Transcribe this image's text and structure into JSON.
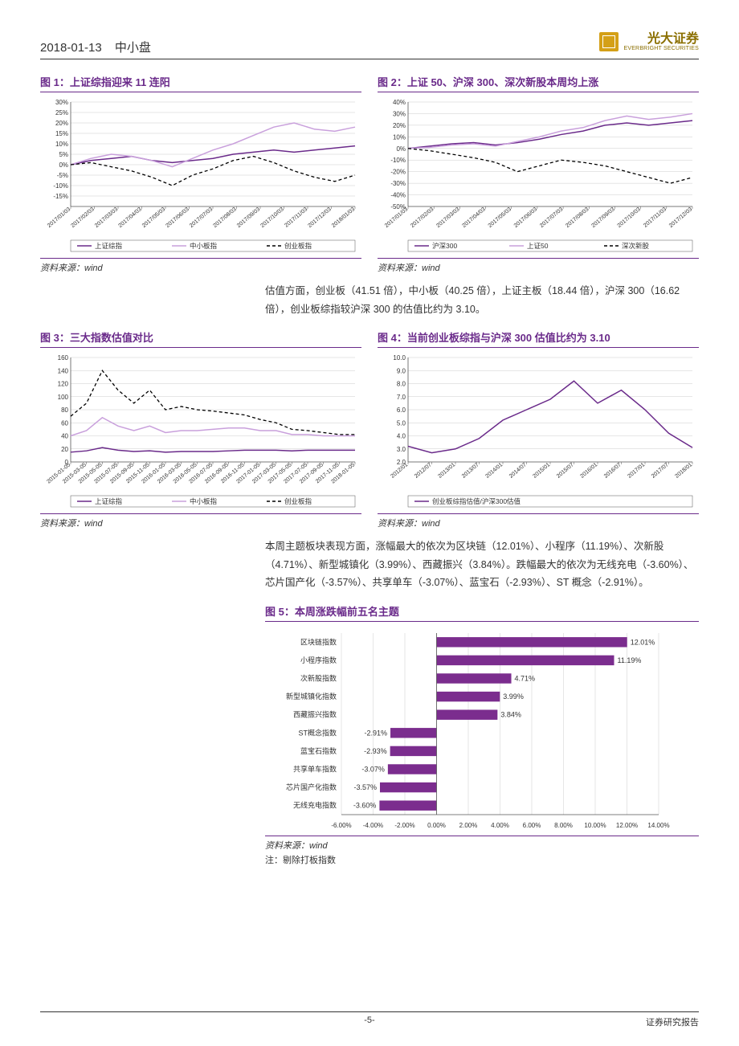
{
  "header": {
    "date": "2018-01-13",
    "section": "中小盘",
    "company": "光大证券",
    "company_en": "EVERBRIGHT SECURITIES",
    "logo_color": "#d4a017"
  },
  "footer": {
    "page": "-5-",
    "right": "证券研究报告"
  },
  "para1": "估值方面，创业板（41.51 倍），中小板（40.25 倍），上证主板（18.44 倍），沪深 300（16.62 倍），创业板综指较沪深 300 的估值比约为 3.10。",
  "para2": "本周主题板块表现方面，涨幅最大的依次为区块链（12.01%）、小程序（11.19%）、次新股（4.71%）、新型城镇化（3.99%）、西藏振兴（3.84%）。跌幅最大的依次为无线充电（-3.60%）、芯片国产化（-3.57%）、共享单车（-3.07%）、蓝宝石（-2.93%）、ST 概念（-2.91%）。",
  "source": "资料来源：wind",
  "fig5_note": "注：剔除打板指数",
  "colors": {
    "purple_dark": "#6a2a8a",
    "purple_mid": "#a56fc1",
    "purple_light": "#c9a0dc",
    "black": "#000000",
    "grid": "#cccccc",
    "axis": "#555555",
    "text": "#333333"
  },
  "fig1": {
    "label": "图 1：",
    "title": "上证综指迎来 11 连阳",
    "type": "line",
    "ylim": [
      -20,
      30
    ],
    "yticks": [
      -15,
      -10,
      -5,
      0,
      5,
      10,
      15,
      20,
      25,
      30
    ],
    "xlabels": [
      "2017/01/03",
      "2017/02/03",
      "2017/03/03",
      "2017/04/03",
      "2017/05/03",
      "2017/06/03",
      "2017/07/03",
      "2017/08/03",
      "2017/09/03",
      "2017/10/03",
      "2017/11/03",
      "2017/12/03",
      "2018/01/03"
    ],
    "series": [
      {
        "name": "上证综指",
        "color": "#6a2a8a",
        "dash": "",
        "width": 1.5,
        "data": [
          0,
          2,
          3,
          4,
          2,
          1,
          2,
          3,
          5,
          6,
          7,
          6,
          7,
          8,
          9
        ]
      },
      {
        "name": "中小板指",
        "color": "#c9a0dc",
        "dash": "",
        "width": 1.5,
        "data": [
          0,
          3,
          5,
          4,
          2,
          -1,
          3,
          7,
          10,
          14,
          18,
          20,
          17,
          16,
          18
        ]
      },
      {
        "name": "创业板指",
        "color": "#000000",
        "dash": "4 3",
        "width": 1.3,
        "data": [
          0,
          1,
          -1,
          -3,
          -6,
          -10,
          -5,
          -2,
          2,
          4,
          1,
          -3,
          -6,
          -8,
          -5
        ]
      }
    ],
    "legend": [
      "上证综指",
      "中小板指",
      "创业板指"
    ]
  },
  "fig2": {
    "label": "图 2：",
    "title": "上证 50、沪深 300、深次新股本周均上涨",
    "type": "line",
    "ylim": [
      -50,
      40
    ],
    "yticks": [
      -50,
      -40,
      -30,
      -20,
      -10,
      0,
      10,
      20,
      30,
      40
    ],
    "xlabels": [
      "2017/01/03",
      "2017/02/03",
      "2017/03/03",
      "2017/04/03",
      "2017/05/03",
      "2017/06/03",
      "2017/07/03",
      "2017/08/03",
      "2017/09/03",
      "2017/10/03",
      "2017/11/03",
      "2017/12/03"
    ],
    "series": [
      {
        "name": "沪深300",
        "color": "#6a2a8a",
        "dash": "",
        "width": 1.5,
        "data": [
          0,
          2,
          4,
          5,
          3,
          5,
          8,
          12,
          15,
          20,
          22,
          20,
          22,
          24
        ]
      },
      {
        "name": "上证50",
        "color": "#c9a0dc",
        "dash": "",
        "width": 1.5,
        "data": [
          0,
          1,
          3,
          4,
          2,
          6,
          10,
          15,
          18,
          24,
          28,
          25,
          27,
          30
        ]
      },
      {
        "name": "深次新股",
        "color": "#000000",
        "dash": "4 3",
        "width": 1.3,
        "data": [
          0,
          -2,
          -5,
          -8,
          -12,
          -20,
          -15,
          -10,
          -12,
          -15,
          -20,
          -25,
          -30,
          -25
        ]
      }
    ],
    "legend": [
      "沪深300",
      "上证50",
      "深次新股"
    ]
  },
  "fig3": {
    "label": "图 3：",
    "title": "三大指数估值对比",
    "type": "line",
    "ylim": [
      0,
      160
    ],
    "yticks": [
      0,
      20,
      40,
      60,
      80,
      100,
      120,
      140,
      160
    ],
    "xlabels": [
      "2015-01-05",
      "2015-03-05",
      "2015-05-05",
      "2015-07-05",
      "2015-09-05",
      "2015-11-05",
      "2016-01-05",
      "2016-03-05",
      "2016-05-05",
      "2016-07-05",
      "2016-09-05",
      "2016-11-05",
      "2017-01-05",
      "2017-03-05",
      "2017-05-05",
      "2017-07-05",
      "2017-09-05",
      "2017-11-05",
      "2018-01-05"
    ],
    "series": [
      {
        "name": "上证综指",
        "color": "#6a2a8a",
        "dash": "",
        "width": 1.5,
        "data": [
          15,
          17,
          22,
          18,
          16,
          17,
          15,
          16,
          16,
          16,
          17,
          18,
          18,
          18,
          17,
          18,
          18,
          18,
          18
        ]
      },
      {
        "name": "中小板指",
        "color": "#c9a0dc",
        "dash": "",
        "width": 1.5,
        "data": [
          40,
          48,
          68,
          55,
          48,
          55,
          45,
          48,
          48,
          50,
          52,
          52,
          48,
          48,
          42,
          42,
          40,
          40,
          40
        ]
      },
      {
        "name": "创业板指",
        "color": "#000000",
        "dash": "4 3",
        "width": 1.3,
        "data": [
          70,
          90,
          140,
          110,
          90,
          110,
          80,
          85,
          80,
          78,
          75,
          72,
          65,
          60,
          50,
          48,
          45,
          42,
          42
        ]
      }
    ],
    "legend": [
      "上证综指",
      "中小板指",
      "创业板指"
    ]
  },
  "fig4": {
    "label": "图 4：",
    "title": "当前创业板综指与沪深 300 估值比约为 3.10",
    "type": "line",
    "ylim": [
      2,
      10
    ],
    "yticks": [
      2.0,
      3.0,
      4.0,
      5.0,
      6.0,
      7.0,
      8.0,
      9.0,
      10.0
    ],
    "xlabels": [
      "2012/01",
      "2012/07",
      "2013/01",
      "2013/07",
      "2014/01",
      "2014/07",
      "2015/01",
      "2015/07",
      "2016/01",
      "2016/07",
      "2017/01",
      "2017/07",
      "2018/01"
    ],
    "series": [
      {
        "name": "创业板综指估值/沪深300估值",
        "color": "#6a2a8a",
        "dash": "",
        "width": 1.5,
        "data": [
          3.2,
          2.7,
          3.0,
          3.8,
          5.2,
          6.0,
          6.8,
          8.2,
          6.5,
          7.5,
          6.0,
          4.2,
          3.1
        ]
      }
    ],
    "legend": [
      "创业板综指估值/沪深300估值"
    ]
  },
  "fig5": {
    "label": "图 5：",
    "title": "本周涨跌幅前五名主题",
    "type": "bar_horizontal",
    "xlim": [
      -6,
      14
    ],
    "xticks": [
      -6,
      -4,
      -2,
      0,
      2,
      4,
      6,
      8,
      10,
      12,
      14
    ],
    "xtick_labels": [
      "-6.00%",
      "-4.00%",
      "-2.00%",
      "0.00%",
      "2.00%",
      "4.00%",
      "6.00%",
      "8.00%",
      "10.00%",
      "12.00%",
      "14.00%"
    ],
    "bar_color": "#7b2d8e",
    "bars": [
      {
        "label": "区块链指数",
        "value": 12.01,
        "text": "12.01%"
      },
      {
        "label": "小程序指数",
        "value": 11.19,
        "text": "11.19%"
      },
      {
        "label": "次新股指数",
        "value": 4.71,
        "text": "4.71%"
      },
      {
        "label": "新型城镇化指数",
        "value": 3.99,
        "text": "3.99%"
      },
      {
        "label": "西藏振兴指数",
        "value": 3.84,
        "text": "3.84%"
      },
      {
        "label": "ST概念指数",
        "value": -2.91,
        "text": "-2.91%"
      },
      {
        "label": "蓝宝石指数",
        "value": -2.93,
        "text": "-2.93%"
      },
      {
        "label": "共享单车指数",
        "value": -3.07,
        "text": "-3.07%"
      },
      {
        "label": "芯片国产化指数",
        "value": -3.57,
        "text": "-3.57%"
      },
      {
        "label": "无线充电指数",
        "value": -3.6,
        "text": "-3.60%"
      }
    ]
  }
}
